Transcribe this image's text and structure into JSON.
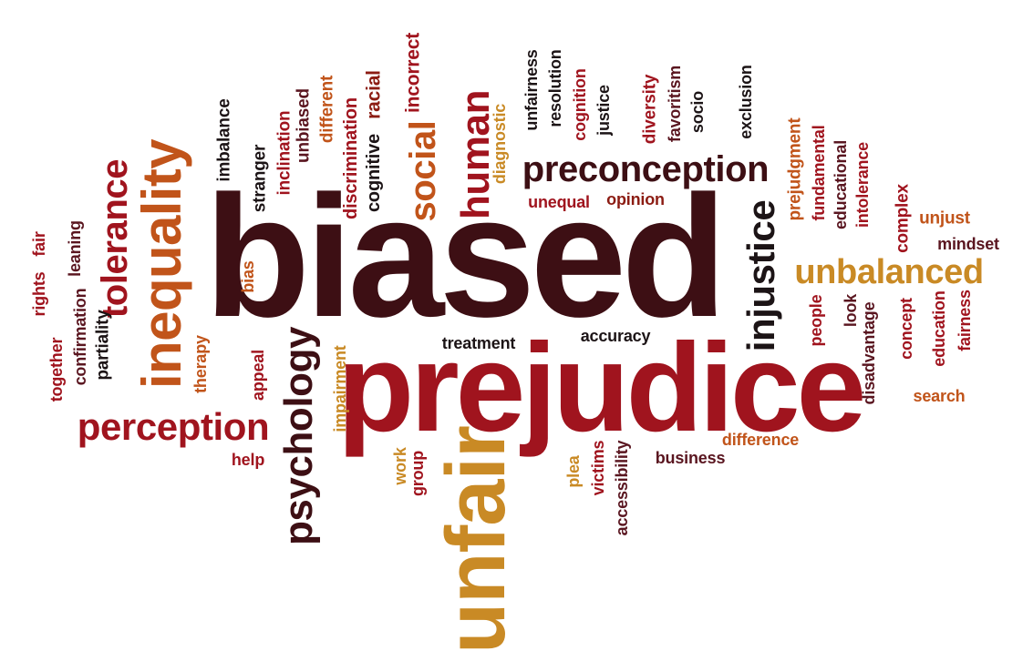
{
  "words": {
    "biased": "biased",
    "prejudice": "prejudice",
    "unfair": "unfair",
    "inequality": "inequality",
    "tolerance": "tolerance",
    "perception": "perception",
    "psychology": "psychology",
    "preconception": "preconception",
    "injustice": "injustice",
    "unbalanced": "unbalanced",
    "social": "social",
    "human": "human",
    "incorrect": "incorrect",
    "racial": "racial",
    "cognitive": "cognitive",
    "discrimination": "discrimination",
    "different": "different",
    "unbiased": "unbiased",
    "inclination": "inclination",
    "stranger": "stranger",
    "imbalance": "imbalance",
    "diagnostic": "diagnostic",
    "unfairness": "unfairness",
    "resolution": "resolution",
    "cognition": "cognition",
    "justice": "justice",
    "diversity": "diversity",
    "favoritism": "favoritism",
    "socio": "socio",
    "exclusion": "exclusion",
    "unequal": "unequal",
    "opinion": "opinion",
    "prejudgment": "prejudgment",
    "fundamental": "fundamental",
    "educational": "educational",
    "intolerance": "intolerance",
    "complex": "complex",
    "unjust": "unjust",
    "mindset": "mindset",
    "bias": "bias",
    "therapy": "therapy",
    "appeal": "appeal",
    "impairment": "impairment",
    "treatment": "treatment",
    "accuracy": "accuracy",
    "people": "people",
    "look": "look",
    "disadvantage": "disadvantage",
    "concept": "concept",
    "education": "education",
    "fairness": "fairness",
    "search": "search",
    "difference": "difference",
    "business": "business",
    "accessibility": "accessibility",
    "victims": "victims",
    "plea": "plea",
    "group": "group",
    "work": "work",
    "help": "help",
    "partiality": "partiality",
    "confirmation": "confirmation",
    "together": "together",
    "leaning": "leaning",
    "fair": "fair",
    "rights": "rights"
  },
  "palette": {
    "dark": "#3d0f14",
    "maroon": "#5a1620",
    "red": "#a0141e",
    "crimson": "#8c1c13",
    "orange": "#c1541a",
    "gold": "#c98a25",
    "black": "#1c1416"
  }
}
